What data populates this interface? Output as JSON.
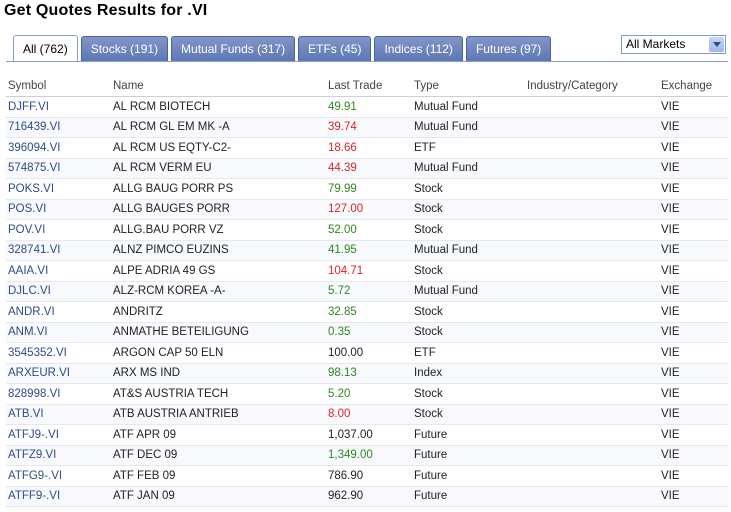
{
  "header": {
    "title": "Get Quotes Results for .VI"
  },
  "tabs": [
    {
      "label": "All (762)",
      "active": true
    },
    {
      "label": "Stocks (191)",
      "active": false
    },
    {
      "label": "Mutual Funds (317)",
      "active": false
    },
    {
      "label": "ETFs (45)",
      "active": false
    },
    {
      "label": "Indices (112)",
      "active": false
    },
    {
      "label": "Futures (97)",
      "active": false
    }
  ],
  "market_select": {
    "value": "All Markets"
  },
  "table": {
    "columns": [
      "Symbol",
      "Name",
      "Last Trade",
      "Type",
      "Industry/Category",
      "Exchange"
    ],
    "rows": [
      {
        "symbol": "DJFF.VI",
        "name": "AL RCM BIOTECH",
        "last": "49.91",
        "dir": "up",
        "type": "Mutual Fund",
        "industry": "",
        "exchange": "VIE"
      },
      {
        "symbol": "716439.VI",
        "name": "AL RCM GL EM MK -A",
        "last": "39.74",
        "dir": "down",
        "type": "Mutual Fund",
        "industry": "",
        "exchange": "VIE"
      },
      {
        "symbol": "396094.VI",
        "name": "AL RCM US EQTY-C2-",
        "last": "18.66",
        "dir": "down",
        "type": "ETF",
        "industry": "",
        "exchange": "VIE"
      },
      {
        "symbol": "574875.VI",
        "name": "AL RCM VERM EU",
        "last": "44.39",
        "dir": "down",
        "type": "Mutual Fund",
        "industry": "",
        "exchange": "VIE"
      },
      {
        "symbol": "POKS.VI",
        "name": "ALLG BAUG PORR PS",
        "last": "79.99",
        "dir": "up",
        "type": "Stock",
        "industry": "",
        "exchange": "VIE"
      },
      {
        "symbol": "POS.VI",
        "name": "ALLG BAUGES PORR",
        "last": "127.00",
        "dir": "down",
        "type": "Stock",
        "industry": "",
        "exchange": "VIE"
      },
      {
        "symbol": "POV.VI",
        "name": "ALLG.BAU PORR VZ",
        "last": "52.00",
        "dir": "up",
        "type": "Stock",
        "industry": "",
        "exchange": "VIE"
      },
      {
        "symbol": "328741.VI",
        "name": "ALNZ PIMCO EUZINS",
        "last": "41.95",
        "dir": "up",
        "type": "Mutual Fund",
        "industry": "",
        "exchange": "VIE"
      },
      {
        "symbol": "AAIA.VI",
        "name": "ALPE ADRIA 49 GS",
        "last": "104.71",
        "dir": "down",
        "type": "Stock",
        "industry": "",
        "exchange": "VIE"
      },
      {
        "symbol": "DJLC.VI",
        "name": "ALZ-RCM KOREA -A-",
        "last": "5.72",
        "dir": "up",
        "type": "Mutual Fund",
        "industry": "",
        "exchange": "VIE"
      },
      {
        "symbol": "ANDR.VI",
        "name": "ANDRITZ",
        "last": "32.85",
        "dir": "up",
        "type": "Stock",
        "industry": "",
        "exchange": "VIE"
      },
      {
        "symbol": "ANM.VI",
        "name": "ANMATHE BETEILIGUNG",
        "last": "0.35",
        "dir": "up",
        "type": "Stock",
        "industry": "",
        "exchange": "VIE"
      },
      {
        "symbol": "3545352.VI",
        "name": "ARGON CAP 50 ELN",
        "last": "100.00",
        "dir": "flat",
        "type": "ETF",
        "industry": "",
        "exchange": "VIE"
      },
      {
        "symbol": "ARXEUR.VI",
        "name": "ARX MS IND",
        "last": "98.13",
        "dir": "up",
        "type": "Index",
        "industry": "",
        "exchange": "VIE"
      },
      {
        "symbol": "828998.VI",
        "name": "AT&S AUSTRIA TECH",
        "last": "5.20",
        "dir": "up",
        "type": "Stock",
        "industry": "",
        "exchange": "VIE"
      },
      {
        "symbol": "ATB.VI",
        "name": "ATB AUSTRIA ANTRIEB",
        "last": "8.00",
        "dir": "down",
        "type": "Stock",
        "industry": "",
        "exchange": "VIE"
      },
      {
        "symbol": "ATFJ9-.VI",
        "name": "ATF APR 09",
        "last": "1,037.00",
        "dir": "flat",
        "type": "Future",
        "industry": "",
        "exchange": "VIE"
      },
      {
        "symbol": "ATFZ9.VI",
        "name": "ATF DEC 09",
        "last": "1,349.00",
        "dir": "up",
        "type": "Future",
        "industry": "",
        "exchange": "VIE"
      },
      {
        "symbol": "ATFG9-.VI",
        "name": "ATF FEB 09",
        "last": "786.90",
        "dir": "flat",
        "type": "Future",
        "industry": "",
        "exchange": "VIE"
      },
      {
        "symbol": "ATFF9-.VI",
        "name": "ATF JAN 09",
        "last": "962.90",
        "dir": "flat",
        "type": "Future",
        "industry": "",
        "exchange": "VIE"
      }
    ]
  },
  "colors": {
    "up": "#2b8a1f",
    "down": "#d7262b",
    "link": "#2e4b8a",
    "tab": "#6b83bd"
  }
}
